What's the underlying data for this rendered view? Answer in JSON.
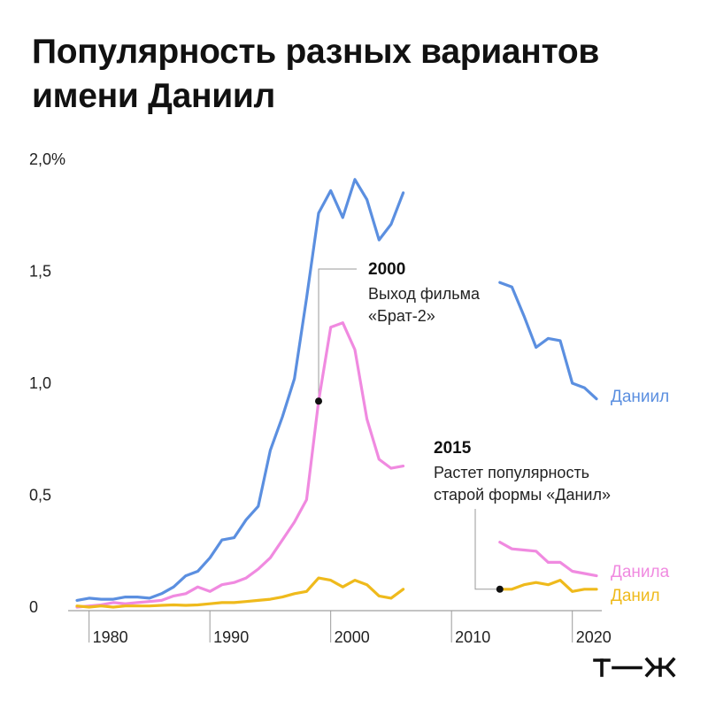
{
  "title": "Популярность разных вариантов имени Даниил",
  "chart_data": {
    "type": "line",
    "title": "Популярность разных вариантов имени Даниил",
    "xlabel": "",
    "ylabel": "",
    "xlim": [
      1979,
      2022
    ],
    "ylim": [
      0,
      2.0
    ],
    "x_ticks": [
      1980,
      1990,
      2000,
      2010,
      2020
    ],
    "y_ticks": [
      {
        "value": 0,
        "label": "0"
      },
      {
        "value": 0.5,
        "label": "0,5"
      },
      {
        "value": 1.0,
        "label": "1,0"
      },
      {
        "value": 1.5,
        "label": "1,5"
      },
      {
        "value": 2.0,
        "label": "2,0%"
      }
    ],
    "grid": false,
    "series": [
      {
        "name": "Даниил",
        "color": "#5b8fe0",
        "segments": [
          [
            [
              1979,
              0.03
            ],
            [
              1980,
              0.04
            ],
            [
              1981,
              0.035
            ],
            [
              1982,
              0.035
            ],
            [
              1983,
              0.045
            ],
            [
              1984,
              0.045
            ],
            [
              1985,
              0.04
            ],
            [
              1986,
              0.06
            ],
            [
              1987,
              0.09
            ],
            [
              1988,
              0.14
            ],
            [
              1989,
              0.16
            ],
            [
              1990,
              0.22
            ],
            [
              1991,
              0.3
            ],
            [
              1992,
              0.31
            ],
            [
              1993,
              0.39
            ],
            [
              1994,
              0.45
            ],
            [
              1995,
              0.7
            ],
            [
              1996,
              0.85
            ],
            [
              1997,
              1.02
            ],
            [
              1998,
              1.38
            ],
            [
              1999,
              1.76
            ],
            [
              2000,
              1.86
            ],
            [
              2001,
              1.74
            ],
            [
              2002,
              1.91
            ],
            [
              2003,
              1.82
            ],
            [
              2004,
              1.64
            ],
            [
              2005,
              1.71
            ],
            [
              2006,
              1.85
            ]
          ],
          [
            [
              2014,
              1.45
            ],
            [
              2015,
              1.43
            ],
            [
              2016,
              1.3
            ],
            [
              2017,
              1.16
            ],
            [
              2018,
              1.2
            ],
            [
              2019,
              1.19
            ],
            [
              2020,
              1.0
            ],
            [
              2021,
              0.98
            ],
            [
              2022,
              0.93
            ]
          ]
        ]
      },
      {
        "name": "Данила",
        "color": "#f08ae0",
        "segments": [
          [
            [
              1979,
              0.0
            ],
            [
              1980,
              0.005
            ],
            [
              1981,
              0.01
            ],
            [
              1982,
              0.02
            ],
            [
              1983,
              0.015
            ],
            [
              1984,
              0.02
            ],
            [
              1985,
              0.025
            ],
            [
              1986,
              0.03
            ],
            [
              1987,
              0.05
            ],
            [
              1988,
              0.06
            ],
            [
              1989,
              0.09
            ],
            [
              1990,
              0.07
            ],
            [
              1991,
              0.1
            ],
            [
              1992,
              0.11
            ],
            [
              1993,
              0.13
            ],
            [
              1994,
              0.17
            ],
            [
              1995,
              0.22
            ],
            [
              1996,
              0.3
            ],
            [
              1997,
              0.38
            ],
            [
              1998,
              0.48
            ],
            [
              1999,
              0.92
            ],
            [
              2000,
              1.25
            ],
            [
              2001,
              1.27
            ],
            [
              2002,
              1.15
            ],
            [
              2003,
              0.84
            ],
            [
              2004,
              0.66
            ],
            [
              2005,
              0.62
            ],
            [
              2006,
              0.63
            ]
          ],
          [
            [
              2014,
              0.29
            ],
            [
              2015,
              0.26
            ],
            [
              2016,
              0.255
            ],
            [
              2017,
              0.25
            ],
            [
              2018,
              0.2
            ],
            [
              2019,
              0.2
            ],
            [
              2020,
              0.16
            ],
            [
              2021,
              0.15
            ],
            [
              2022,
              0.14
            ]
          ]
        ]
      },
      {
        "name": "Данил",
        "color": "#efba1c",
        "segments": [
          [
            [
              1979,
              0.005
            ],
            [
              1980,
              0.0
            ],
            [
              1981,
              0.005
            ],
            [
              1982,
              0.0
            ],
            [
              1983,
              0.005
            ],
            [
              1984,
              0.005
            ],
            [
              1985,
              0.005
            ],
            [
              1986,
              0.008
            ],
            [
              1987,
              0.01
            ],
            [
              1988,
              0.008
            ],
            [
              1989,
              0.01
            ],
            [
              1990,
              0.015
            ],
            [
              1991,
              0.02
            ],
            [
              1992,
              0.02
            ],
            [
              1993,
              0.025
            ],
            [
              1994,
              0.03
            ],
            [
              1995,
              0.035
            ],
            [
              1996,
              0.045
            ],
            [
              1997,
              0.06
            ],
            [
              1998,
              0.07
            ],
            [
              1999,
              0.13
            ],
            [
              2000,
              0.12
            ],
            [
              2001,
              0.09
            ],
            [
              2002,
              0.12
            ],
            [
              2003,
              0.1
            ],
            [
              2004,
              0.05
            ],
            [
              2005,
              0.04
            ],
            [
              2006,
              0.08
            ]
          ],
          [
            [
              2014,
              0.08
            ],
            [
              2015,
              0.08
            ],
            [
              2016,
              0.1
            ],
            [
              2017,
              0.11
            ],
            [
              2018,
              0.1
            ],
            [
              2019,
              0.12
            ],
            [
              2020,
              0.07
            ],
            [
              2021,
              0.08
            ],
            [
              2022,
              0.08
            ]
          ]
        ]
      }
    ],
    "annotations": [
      {
        "id": "film",
        "year_label": "2000",
        "lines": [
          "Выход фильма",
          "«Брат-2»"
        ],
        "point": [
          1999,
          0.92
        ]
      },
      {
        "id": "danil",
        "year_label": "2015",
        "lines": [
          "Растет популярность",
          "старой формы «Данил»"
        ],
        "point": [
          2014,
          0.08
        ]
      }
    ]
  },
  "logo": {
    "text": "т—ж"
  }
}
